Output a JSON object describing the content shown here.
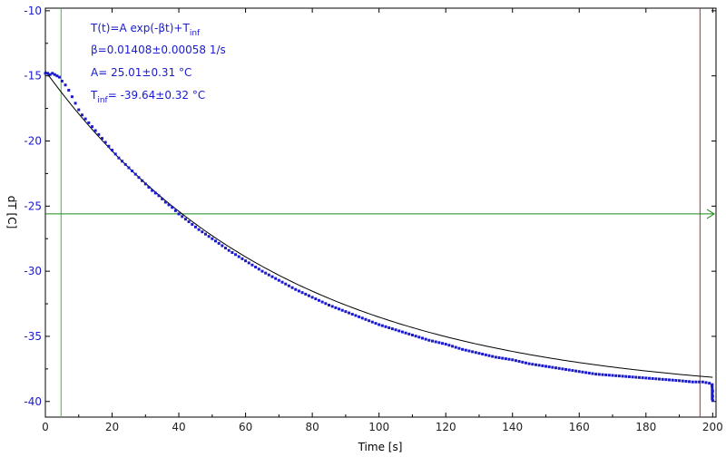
{
  "chart_data": {
    "type": "scatter",
    "xlabel": "Time [s]",
    "ylabel": "dT [C]",
    "xlim": [
      0,
      201
    ],
    "ylim": [
      -41.2,
      -9.8
    ],
    "xticks": [
      0,
      20,
      40,
      60,
      80,
      100,
      120,
      140,
      160,
      180,
      200
    ],
    "yticks": [
      -10,
      -15,
      -20,
      -25,
      -30,
      -35,
      -40
    ],
    "annotations": {
      "model_prefix": "T(t)=A exp(-βt)+T",
      "model_sub": "inf",
      "beta": "β=0.01408±0.00058 1/s",
      "amplitude": "A= 25.01±0.31 °C",
      "tinf_prefix": "T",
      "tinf_sub": "inf",
      "tinf_value": "= -39.64±0.32 °C"
    },
    "fit": {
      "A": 25.01,
      "beta": 0.01408,
      "T_inf": -39.64
    },
    "markers": {
      "green_vertical_x": 4.7,
      "red_vertical_x": 196.2,
      "green_horizontal_y": -25.6
    },
    "series": [
      {
        "points": [
          [
            0,
            -14.8
          ],
          [
            0.7,
            -14.8
          ],
          [
            1.4,
            -14.9
          ],
          [
            2.1,
            -14.8
          ],
          [
            2.8,
            -14.9
          ],
          [
            3.5,
            -15.0
          ],
          [
            4.2,
            -15.1
          ],
          [
            5.0,
            -15.4
          ],
          [
            6.0,
            -15.7
          ],
          [
            7.0,
            -16.1
          ],
          [
            8.0,
            -16.6
          ],
          [
            9.0,
            -17.1
          ],
          [
            10.0,
            -17.6
          ],
          [
            11.0,
            -18.0
          ],
          [
            12.0,
            -18.3
          ],
          [
            13.0,
            -18.6
          ],
          [
            14.0,
            -18.9
          ],
          [
            15.0,
            -19.2
          ],
          [
            16.0,
            -19.5
          ],
          [
            17.0,
            -19.8
          ],
          [
            18.0,
            -20.1
          ],
          [
            19.0,
            -20.4
          ],
          [
            20.0,
            -20.7
          ],
          [
            22.0,
            -21.3
          ],
          [
            24.0,
            -21.8
          ],
          [
            26.0,
            -22.3
          ],
          [
            28.0,
            -22.8
          ],
          [
            30.0,
            -23.3
          ],
          [
            32.0,
            -23.8
          ],
          [
            34.0,
            -24.2
          ],
          [
            36.0,
            -24.7
          ],
          [
            38.0,
            -25.1
          ],
          [
            40.0,
            -25.6
          ],
          [
            43.0,
            -26.2
          ],
          [
            46.0,
            -26.8
          ],
          [
            50.0,
            -27.5
          ],
          [
            55.0,
            -28.4
          ],
          [
            60.0,
            -29.2
          ],
          [
            65.0,
            -30.0
          ],
          [
            70.0,
            -30.7
          ],
          [
            75.0,
            -31.4
          ],
          [
            80.0,
            -32.0
          ],
          [
            85.0,
            -32.6
          ],
          [
            90.0,
            -33.1
          ],
          [
            95.0,
            -33.6
          ],
          [
            100.0,
            -34.1
          ],
          [
            105.0,
            -34.5
          ],
          [
            110.0,
            -34.9
          ],
          [
            115.0,
            -35.3
          ],
          [
            120.0,
            -35.6
          ],
          [
            125.0,
            -36.0
          ],
          [
            130.0,
            -36.3
          ],
          [
            135.0,
            -36.6
          ],
          [
            140.0,
            -36.8
          ],
          [
            145.0,
            -37.1
          ],
          [
            150.0,
            -37.3
          ],
          [
            155.0,
            -37.5
          ],
          [
            160.0,
            -37.7
          ],
          [
            165.0,
            -37.9
          ],
          [
            170.0,
            -38.0
          ],
          [
            175.0,
            -38.1
          ],
          [
            180.0,
            -38.2
          ],
          [
            185.0,
            -38.3
          ],
          [
            190.0,
            -38.4
          ],
          [
            194.0,
            -38.5
          ],
          [
            197.0,
            -38.5
          ],
          [
            199.0,
            -38.6
          ],
          [
            199.8,
            -38.8
          ],
          [
            200.0,
            -39.2
          ],
          [
            200.0,
            -39.6
          ],
          [
            200.0,
            -39.9
          ]
        ]
      }
    ]
  },
  "colors": {
    "text": "#1a1ad0",
    "axis_text": "#222222",
    "data_points": "#1a1acc",
    "fit_line": "#000000",
    "green_line": "#22cc22",
    "horizontal_line": "#1a8a1a",
    "red_line": "#cc2222"
  }
}
